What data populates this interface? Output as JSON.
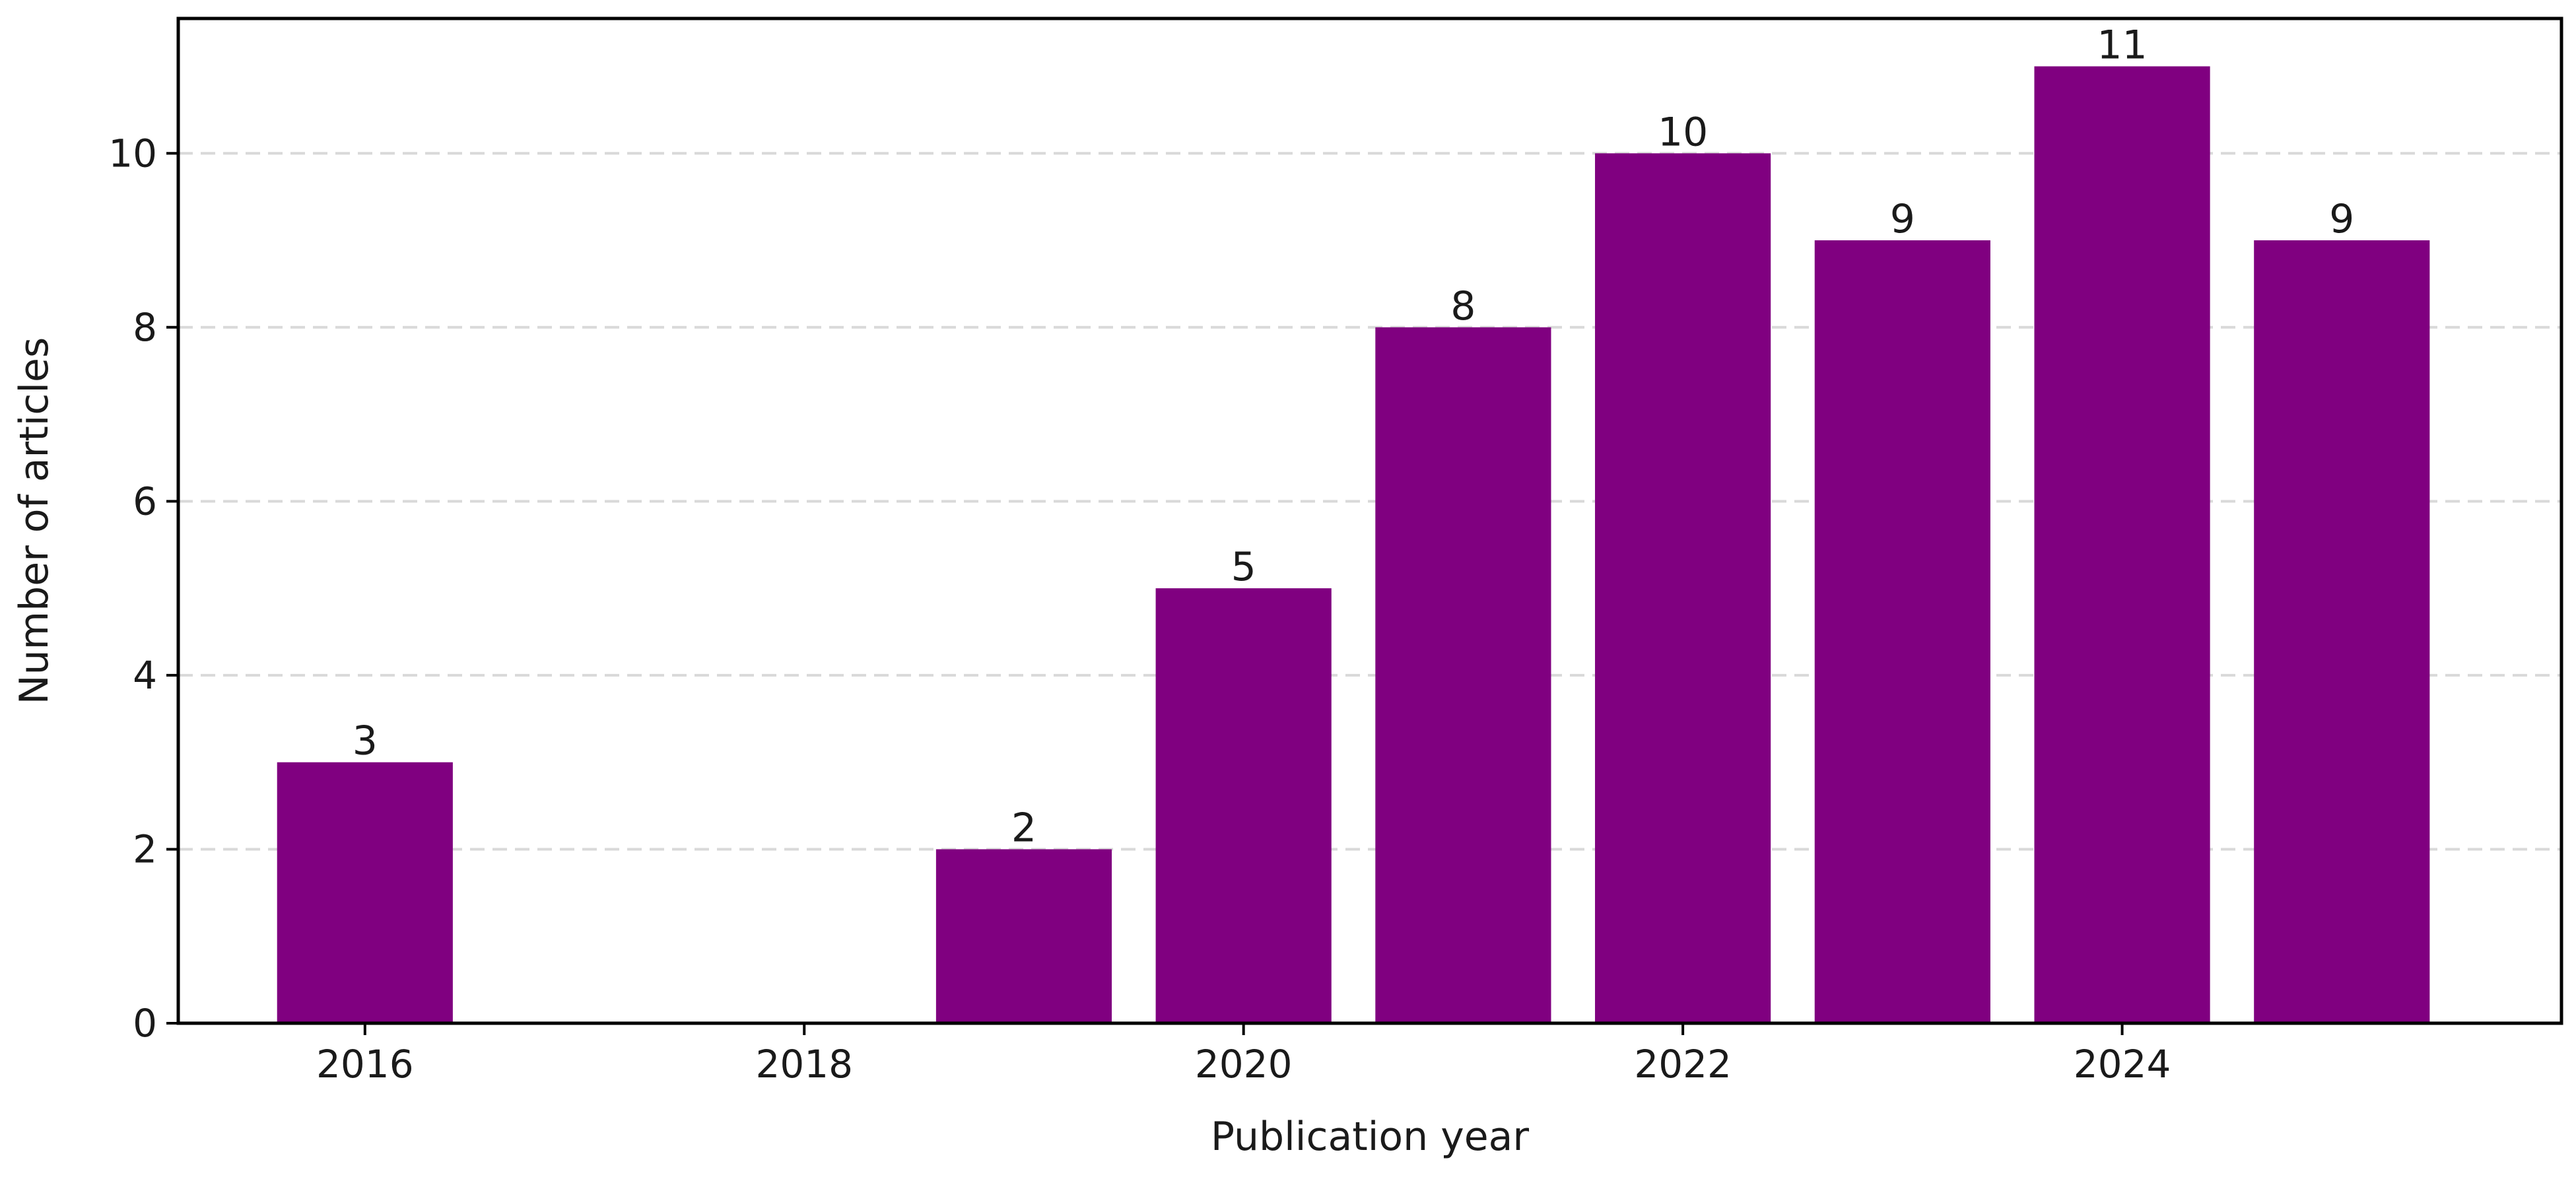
{
  "chart_data": {
    "type": "bar",
    "x": [
      2016,
      2019,
      2020,
      2021,
      2022,
      2023,
      2024,
      2025
    ],
    "values": [
      3,
      2,
      5,
      8,
      10,
      9,
      11,
      9
    ],
    "data_labels": [
      "3",
      "2",
      "5",
      "8",
      "10",
      "9",
      "11",
      "9"
    ],
    "xticks": [
      2016,
      2018,
      2020,
      2022,
      2024
    ],
    "xtick_labels": [
      "2016",
      "2018",
      "2020",
      "2022",
      "2024"
    ],
    "yticks": [
      0,
      2,
      4,
      6,
      8,
      10
    ],
    "ytick_labels": [
      "0",
      "2",
      "4",
      "6",
      "8",
      "10"
    ],
    "xlim": [
      2015.15,
      2026.0
    ],
    "ylim": [
      0,
      11.55
    ],
    "xlabel": "Publication year",
    "ylabel": "Number of articles",
    "bar_width_years": 0.8,
    "grid": "y-axis, dashed",
    "colors": {
      "bar": "#800080"
    }
  }
}
